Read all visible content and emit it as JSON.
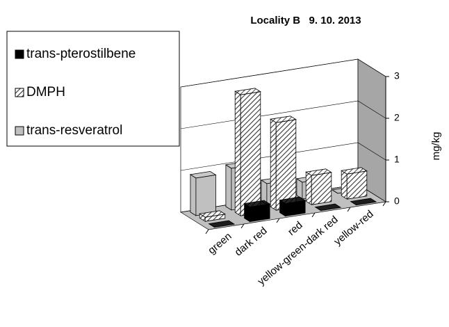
{
  "chart_data": {
    "type": "bar3d",
    "title": "Locality B   9. 10. 2013",
    "y_label": "mg/kg",
    "categories": [
      "green",
      "dark red",
      "red",
      "yellow-green-dark red",
      "yellow-red"
    ],
    "series": [
      {
        "name": "trans-pterostilbene",
        "color": "#000000",
        "values": [
          0,
          0.35,
          0.3,
          0,
          0
        ]
      },
      {
        "name": "DMPH",
        "color": "#ffffff",
        "pattern": "diagonal",
        "values": [
          0.1,
          2.9,
          2.1,
          0.7,
          0.6
        ]
      },
      {
        "name": "trans-resveratrol",
        "color": "#c0c0c0",
        "values": [
          0.9,
          1.0,
          0.5,
          0.4,
          0
        ]
      }
    ],
    "ylim": [
      0,
      3
    ],
    "yticks": [
      0,
      1,
      2,
      3
    ],
    "grid": true
  }
}
